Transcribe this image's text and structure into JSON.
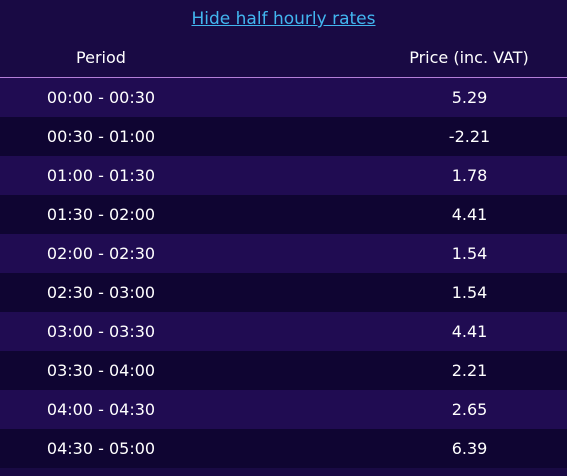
{
  "link": "Hide half hourly rates",
  "table": {
    "headers": [
      "Period",
      "Price (inc. VAT)"
    ],
    "rows": [
      [
        "00:00 - 00:30",
        5.29
      ],
      [
        "00:30 - 01:00",
        -2.21
      ],
      [
        "01:00 - 01:30",
        1.78
      ],
      [
        "01:30 - 02:00",
        4.41
      ],
      [
        "02:00 - 02:30",
        1.54
      ],
      [
        "02:30 - 03:00",
        1.54
      ],
      [
        "03:00 - 03:30",
        4.41
      ],
      [
        "03:30 - 04:00",
        2.21
      ],
      [
        "04:00 - 04:30",
        2.65
      ],
      [
        "04:30 - 05:00",
        6.39
      ]
    ]
  }
}
